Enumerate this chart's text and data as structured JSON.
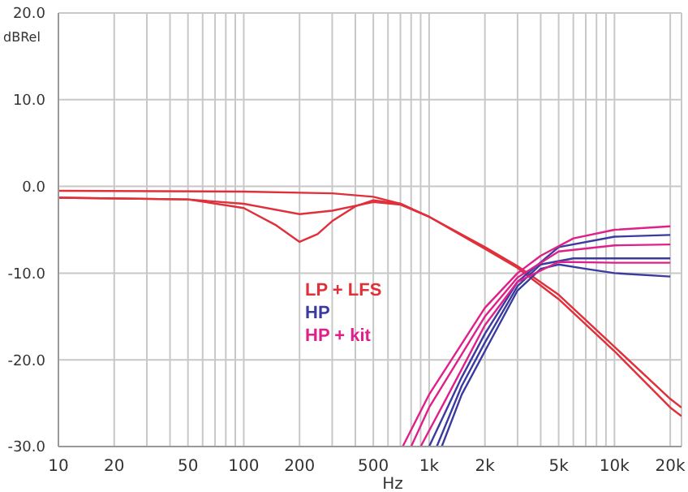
{
  "chart_data": {
    "type": "line",
    "xlabel": "Hz",
    "ylabel": "dBRel",
    "log": "x",
    "grid": true,
    "legend": "center",
    "marker": "none",
    "line_style": "solid",
    "xlim": [
      10,
      23000
    ],
    "ylim": [
      -30,
      20
    ],
    "xticks": [
      {
        "value": 10,
        "label": "10"
      },
      {
        "value": 20,
        "label": "20"
      },
      {
        "value": 30,
        "label": null
      },
      {
        "value": 40,
        "label": null
      },
      {
        "value": 50,
        "label": "50"
      },
      {
        "value": 60,
        "label": null
      },
      {
        "value": 70,
        "label": null
      },
      {
        "value": 80,
        "label": null
      },
      {
        "value": 90,
        "label": null
      },
      {
        "value": 100,
        "label": "100"
      },
      {
        "value": 200,
        "label": "200"
      },
      {
        "value": 300,
        "label": null
      },
      {
        "value": 400,
        "label": null
      },
      {
        "value": 500,
        "label": "500"
      },
      {
        "value": 600,
        "label": null
      },
      {
        "value": 700,
        "label": null
      },
      {
        "value": 800,
        "label": null
      },
      {
        "value": 900,
        "label": null
      },
      {
        "value": 1000,
        "label": "1k"
      },
      {
        "value": 2000,
        "label": "2k"
      },
      {
        "value": 3000,
        "label": null
      },
      {
        "value": 4000,
        "label": null
      },
      {
        "value": 5000,
        "label": "5k"
      },
      {
        "value": 6000,
        "label": null
      },
      {
        "value": 7000,
        "label": null
      },
      {
        "value": 8000,
        "label": null
      },
      {
        "value": 9000,
        "label": null
      },
      {
        "value": 10000,
        "label": "10k"
      },
      {
        "value": 20000,
        "label": "20k"
      }
    ],
    "yticks": [
      {
        "value": -30,
        "label": "-30.0"
      },
      {
        "value": -20,
        "label": "-20.0"
      },
      {
        "value": -10,
        "label": "-10.0"
      },
      {
        "value": 0,
        "label": "0.0"
      },
      {
        "value": 10,
        "label": "10.0"
      },
      {
        "value": 20,
        "label": "20.0"
      }
    ],
    "series": [
      {
        "name": "LP + LFS",
        "color": "#e0303a",
        "x": [
          10,
          100,
          300,
          500,
          700,
          1000,
          2000,
          3000,
          5000,
          10000,
          20000,
          23000
        ],
        "values": [
          -0.5,
          -0.6,
          -0.8,
          -1.2,
          -2.0,
          -3.5,
          -7,
          -9.2,
          -12.5,
          -18.5,
          -24.5,
          -25.5
        ]
      },
      {
        "color": "#e0303a",
        "x": [
          10,
          50,
          100,
          200,
          300,
          500,
          700,
          1000,
          2000,
          3000,
          5000,
          10000,
          20000,
          23000
        ],
        "values": [
          -1.3,
          -1.5,
          -2.0,
          -3.2,
          -2.8,
          -1.8,
          -2.1,
          -3.5,
          -7.2,
          -9.4,
          -13,
          -19,
          -25.5,
          -26.5
        ]
      },
      {
        "color": "#e0303a",
        "x": [
          10,
          50,
          100,
          150,
          200,
          250,
          300,
          400,
          500,
          700,
          1000
        ],
        "values": [
          -1.3,
          -1.5,
          -2.5,
          -4.5,
          -6.4,
          -5.5,
          -4,
          -2.3,
          -1.6,
          -2,
          -3.5
        ]
      },
      {
        "name": "HP",
        "color": "#3a3aa0",
        "x": [
          1170,
          1500,
          2000,
          3000,
          4000,
          5000,
          7000,
          10000,
          20000
        ],
        "values": [
          -30,
          -24,
          -19,
          -12,
          -9.5,
          -9,
          -9.5,
          -10,
          -10.4
        ]
      },
      {
        "color": "#3a3aa0",
        "x": [
          1100,
          1500,
          2000,
          3000,
          4000,
          6000,
          10000,
          20000
        ],
        "values": [
          -30,
          -23,
          -18,
          -11.5,
          -9,
          -8.3,
          -8.3,
          -8.3
        ]
      },
      {
        "color": "#3a3aa0",
        "x": [
          1000,
          1500,
          2000,
          3000,
          5000,
          10000,
          20000
        ],
        "values": [
          -30,
          -22,
          -17,
          -11,
          -7,
          -5.8,
          -5.6
        ]
      },
      {
        "name": "HP + kit",
        "color": "#e0208a",
        "x": [
          720,
          1000,
          2000,
          3000,
          4000,
          6000,
          10000,
          20000
        ],
        "values": [
          -30,
          -24,
          -14,
          -10,
          -8,
          -6,
          -5,
          -4.6
        ]
      },
      {
        "color": "#e0208a",
        "x": [
          800,
          1000,
          2000,
          3000,
          5000,
          10000,
          20000
        ],
        "values": [
          -30,
          -25.5,
          -15,
          -10.5,
          -7.5,
          -6.8,
          -6.7
        ]
      },
      {
        "color": "#e0208a",
        "x": [
          900,
          1200,
          2000,
          3000,
          5000,
          10000,
          20000
        ],
        "values": [
          -30,
          -25,
          -16,
          -11,
          -8.7,
          -8.8,
          -8.8
        ]
      }
    ]
  }
}
